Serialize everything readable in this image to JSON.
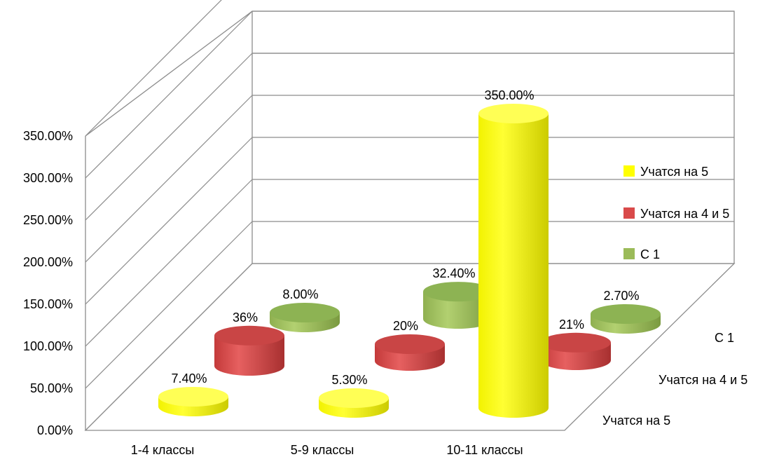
{
  "chart_data": {
    "type": "bar",
    "variant": "3d-cylinder",
    "categories": [
      "1-4 классы",
      "5-9 классы",
      "10-11 классы"
    ],
    "series": [
      {
        "name": "Учатся на  5",
        "values": [
          7.4,
          5.3,
          350.0
        ],
        "labels": [
          "7.40%",
          "5.30%",
          "350.00%"
        ],
        "color": "#ffff00"
      },
      {
        "name": "Учатся на 4 и 5",
        "values": [
          36,
          20,
          21
        ],
        "labels": [
          "36%",
          "20%",
          "21%"
        ],
        "color": "#d94a4a"
      },
      {
        "name": "С 1",
        "values": [
          8.0,
          32.4,
          2.7
        ],
        "labels": [
          "8.00%",
          "32.40%",
          "2.70%"
        ],
        "color": "#9bbb59"
      }
    ],
    "y_ticks": [
      "0.00%",
      "50.00%",
      "100.00%",
      "150.00%",
      "200.00%",
      "250.00%",
      "300.00%",
      "350.00%"
    ],
    "ylim": [
      0,
      350
    ],
    "depth_labels": [
      "Учатся на  5",
      "Учатся на 4 и 5",
      "С 1"
    ],
    "legend_position": "right",
    "grid": true
  }
}
